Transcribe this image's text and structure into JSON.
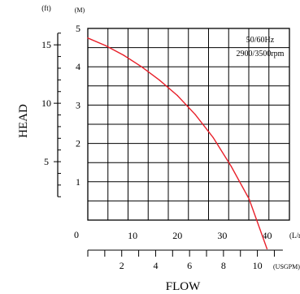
{
  "chart_data": {
    "type": "line",
    "units": {
      "head_ft": "(ft)",
      "head_m": "(M)",
      "flow_lmin": "(L/min",
      "flow_usgpm": "(USGPM)"
    },
    "ylabel": "HEAD",
    "xlabel": "FLOW",
    "annotation_lines": [
      "50/60Hz",
      "2900/3500rpm"
    ],
    "y_m": {
      "range": [
        0,
        5
      ],
      "ticks": [
        "1",
        "2",
        "3",
        "4",
        "5"
      ]
    },
    "y_ft": {
      "ticks": [
        "5",
        "10",
        "15"
      ]
    },
    "x_lmin": {
      "range": [
        0,
        45
      ],
      "origin": "0",
      "ticks": [
        "10",
        "20",
        "30",
        "40"
      ]
    },
    "x_usgpm": {
      "ticks": [
        "2",
        "4",
        "6",
        "8",
        "10"
      ]
    },
    "grid": true,
    "line_color": "#e8202a",
    "series": [
      {
        "x": [
          0,
          4,
          8,
          12,
          16,
          20,
          24,
          28,
          32,
          36,
          40
        ],
        "y": [
          4.75,
          4.55,
          4.3,
          4.0,
          3.65,
          3.25,
          2.75,
          2.15,
          1.4,
          0.55,
          -0.75
        ]
      }
    ]
  }
}
